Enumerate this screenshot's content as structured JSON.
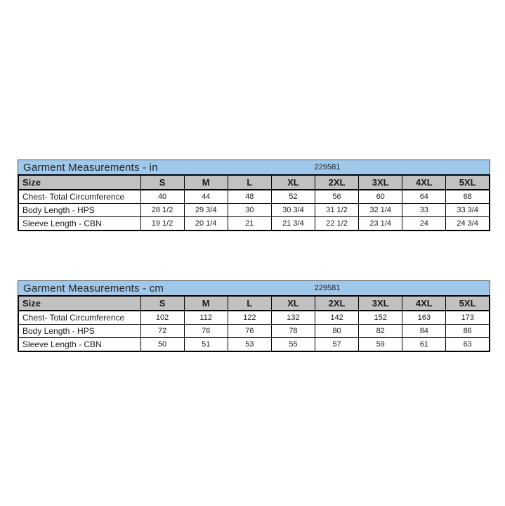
{
  "colors": {
    "title_bar_bg": "#9fc8eb",
    "header_bg": "#c1c1c1",
    "border": "#000000",
    "text": "#1a1a1a"
  },
  "tables": [
    {
      "title": "Garment Measurements - in",
      "code": "229581",
      "columns": [
        "Size",
        "S",
        "M",
        "L",
        "XL",
        "2XL",
        "3XL",
        "4XL",
        "5XL"
      ],
      "rows": [
        {
          "label": "Chest- Total Circumference",
          "values": [
            "40",
            "44",
            "48",
            "52",
            "56",
            "60",
            "64",
            "68"
          ]
        },
        {
          "label": "Body Length - HPS",
          "values": [
            "28 1/2",
            "29 3/4",
            "30",
            "30 3/4",
            "31 1/2",
            "32 1/4",
            "33",
            "33 3/4"
          ]
        },
        {
          "label": "Sleeve Length - CBN",
          "values": [
            "19 1/2",
            "20 1/4",
            "21",
            "21 3/4",
            "22 1/2",
            "23 1/4",
            "24",
            "24 3/4"
          ]
        }
      ]
    },
    {
      "title": "Garment Measurements - cm",
      "code": "229581",
      "columns": [
        "Size",
        "S",
        "M",
        "L",
        "XL",
        "2XL",
        "3XL",
        "4XL",
        "5XL"
      ],
      "rows": [
        {
          "label": "Chest- Total Circumference",
          "values": [
            "102",
            "112",
            "122",
            "132",
            "142",
            "152",
            "163",
            "173"
          ]
        },
        {
          "label": "Body Length - HPS",
          "values": [
            "72",
            "76",
            "76",
            "78",
            "80",
            "82",
            "84",
            "86"
          ]
        },
        {
          "label": "Sleeve Length - CBN",
          "values": [
            "50",
            "51",
            "53",
            "55",
            "57",
            "59",
            "61",
            "63"
          ]
        }
      ]
    }
  ]
}
